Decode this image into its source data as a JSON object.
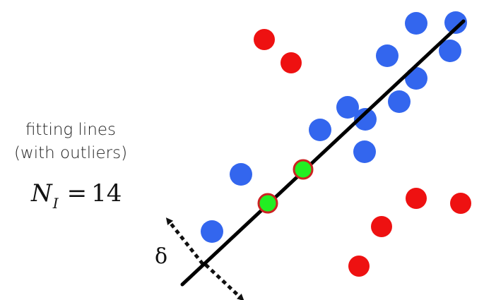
{
  "caption": {
    "line1": "fitting lines",
    "line2": "(with outliers)"
  },
  "formula": {
    "variable": "N",
    "subscript": "I",
    "equals": "=",
    "value": "14"
  },
  "threshold_symbol": "δ",
  "colors": {
    "inlier": "#3366ee",
    "outlier": "#ee1111",
    "sample_fill": "#22ee22",
    "sample_stroke": "#cc2222",
    "line": "#000000"
  }
}
